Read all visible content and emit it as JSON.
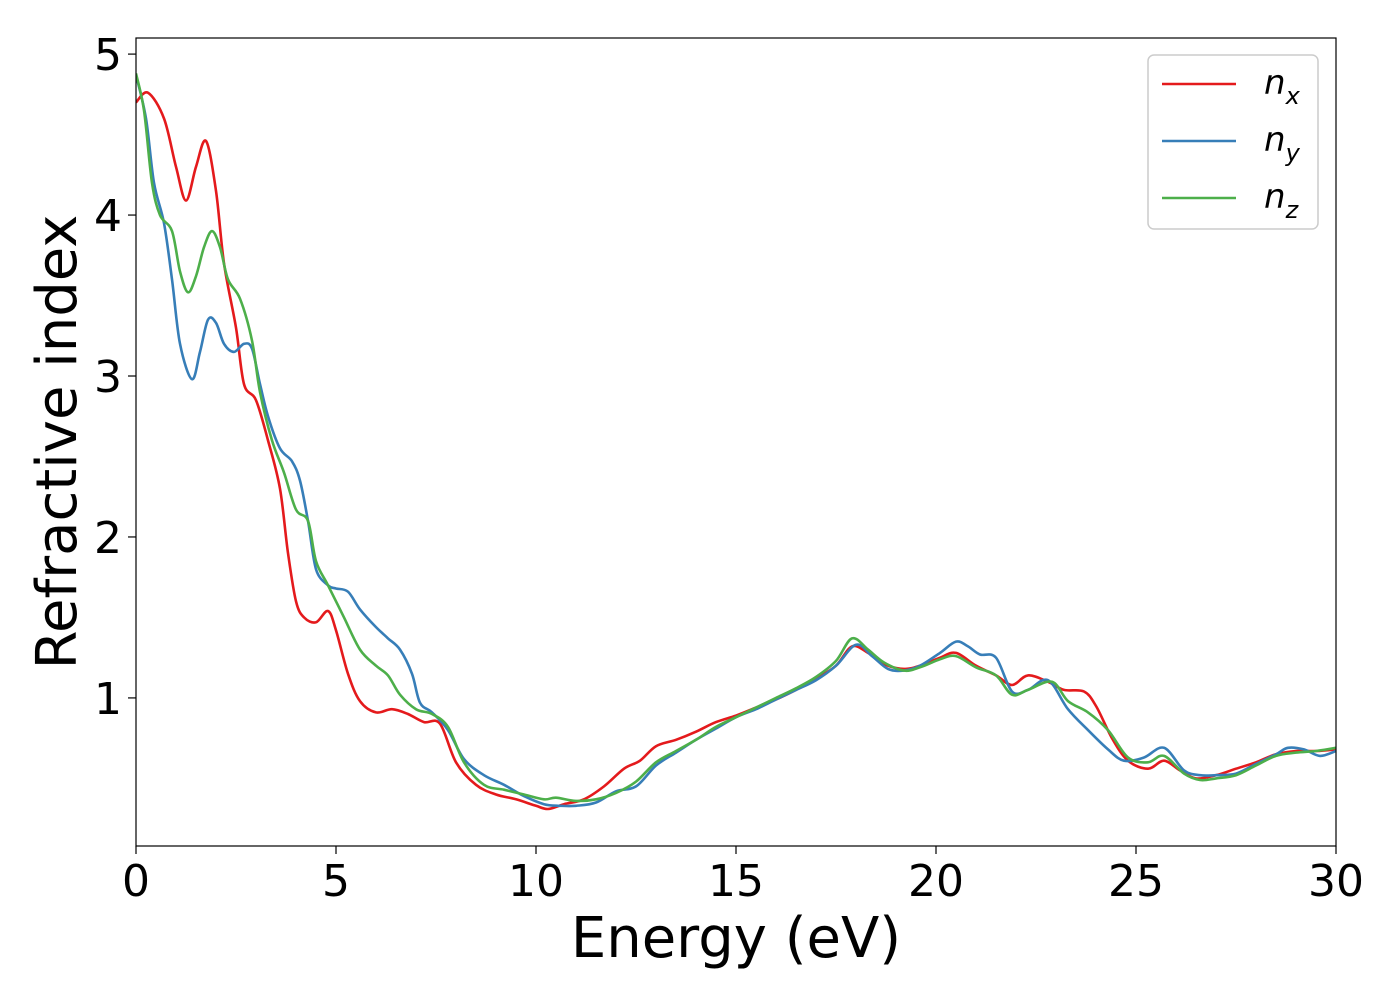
{
  "chart_data": {
    "type": "line",
    "title": "",
    "xlabel": "Energy (eV)",
    "ylabel": "Refractive index",
    "xlim": [
      0,
      30
    ],
    "ylim": [
      0.08,
      5.1
    ],
    "xticks": [
      0,
      5,
      10,
      15,
      20,
      25,
      30
    ],
    "yticks": [
      1,
      2,
      3,
      4,
      5
    ],
    "grid": false,
    "legend": {
      "position": "top-right",
      "entries": [
        {
          "base": "n",
          "sub": "x",
          "color": "#e41a1c"
        },
        {
          "base": "n",
          "sub": "y",
          "color": "#377eb8"
        },
        {
          "base": "n",
          "sub": "z",
          "color": "#4daf4a"
        }
      ]
    },
    "series": [
      {
        "key": "nx",
        "color": "#e41a1c",
        "points": [
          [
            0,
            4.7
          ],
          [
            0.3,
            4.76
          ],
          [
            0.7,
            4.6
          ],
          [
            1.0,
            4.3
          ],
          [
            1.25,
            4.09
          ],
          [
            1.5,
            4.3
          ],
          [
            1.75,
            4.46
          ],
          [
            2.0,
            4.15
          ],
          [
            2.2,
            3.7
          ],
          [
            2.5,
            3.3
          ],
          [
            2.7,
            2.95
          ],
          [
            3.0,
            2.85
          ],
          [
            3.3,
            2.6
          ],
          [
            3.6,
            2.3
          ],
          [
            3.8,
            1.9
          ],
          [
            4.0,
            1.6
          ],
          [
            4.2,
            1.5
          ],
          [
            4.5,
            1.47
          ],
          [
            4.8,
            1.54
          ],
          [
            5.0,
            1.42
          ],
          [
            5.3,
            1.15
          ],
          [
            5.6,
            0.98
          ],
          [
            6.0,
            0.91
          ],
          [
            6.4,
            0.93
          ],
          [
            6.8,
            0.9
          ],
          [
            7.2,
            0.85
          ],
          [
            7.6,
            0.84
          ],
          [
            8.0,
            0.6
          ],
          [
            8.5,
            0.46
          ],
          [
            9.0,
            0.4
          ],
          [
            9.5,
            0.37
          ],
          [
            10.0,
            0.33
          ],
          [
            10.3,
            0.31
          ],
          [
            10.7,
            0.34
          ],
          [
            11.2,
            0.37
          ],
          [
            11.7,
            0.45
          ],
          [
            12.2,
            0.56
          ],
          [
            12.6,
            0.61
          ],
          [
            13.0,
            0.7
          ],
          [
            13.5,
            0.74
          ],
          [
            14.0,
            0.79
          ],
          [
            14.5,
            0.85
          ],
          [
            15.0,
            0.89
          ],
          [
            15.5,
            0.94
          ],
          [
            16.0,
            0.99
          ],
          [
            16.5,
            1.05
          ],
          [
            17.0,
            1.12
          ],
          [
            17.5,
            1.2
          ],
          [
            17.9,
            1.32
          ],
          [
            18.3,
            1.28
          ],
          [
            18.7,
            1.21
          ],
          [
            19.2,
            1.18
          ],
          [
            19.6,
            1.2
          ],
          [
            20.1,
            1.25
          ],
          [
            20.5,
            1.28
          ],
          [
            21.0,
            1.2
          ],
          [
            21.5,
            1.14
          ],
          [
            21.9,
            1.08
          ],
          [
            22.3,
            1.14
          ],
          [
            22.8,
            1.1
          ],
          [
            23.2,
            1.05
          ],
          [
            23.7,
            1.04
          ],
          [
            24.0,
            0.95
          ],
          [
            24.4,
            0.75
          ],
          [
            24.8,
            0.61
          ],
          [
            25.3,
            0.56
          ],
          [
            25.7,
            0.61
          ],
          [
            26.1,
            0.55
          ],
          [
            26.5,
            0.5
          ],
          [
            27.0,
            0.52
          ],
          [
            27.5,
            0.56
          ],
          [
            28.0,
            0.6
          ],
          [
            28.5,
            0.65
          ],
          [
            29.0,
            0.67
          ],
          [
            29.5,
            0.67
          ],
          [
            30.0,
            0.68
          ]
        ]
      },
      {
        "key": "ny",
        "color": "#377eb8",
        "points": [
          [
            0,
            4.87
          ],
          [
            0.25,
            4.6
          ],
          [
            0.45,
            4.2
          ],
          [
            0.7,
            3.95
          ],
          [
            0.9,
            3.6
          ],
          [
            1.1,
            3.2
          ],
          [
            1.4,
            2.98
          ],
          [
            1.6,
            3.15
          ],
          [
            1.8,
            3.35
          ],
          [
            2.0,
            3.33
          ],
          [
            2.2,
            3.2
          ],
          [
            2.45,
            3.15
          ],
          [
            2.7,
            3.2
          ],
          [
            2.9,
            3.17
          ],
          [
            3.1,
            2.95
          ],
          [
            3.3,
            2.75
          ],
          [
            3.6,
            2.55
          ],
          [
            3.9,
            2.47
          ],
          [
            4.1,
            2.35
          ],
          [
            4.3,
            2.1
          ],
          [
            4.5,
            1.8
          ],
          [
            4.8,
            1.7
          ],
          [
            5.0,
            1.68
          ],
          [
            5.3,
            1.66
          ],
          [
            5.6,
            1.55
          ],
          [
            6.0,
            1.44
          ],
          [
            6.3,
            1.37
          ],
          [
            6.6,
            1.3
          ],
          [
            6.9,
            1.15
          ],
          [
            7.1,
            0.97
          ],
          [
            7.4,
            0.91
          ],
          [
            7.8,
            0.8
          ],
          [
            8.2,
            0.62
          ],
          [
            8.7,
            0.52
          ],
          [
            9.2,
            0.46
          ],
          [
            9.7,
            0.39
          ],
          [
            10.2,
            0.34
          ],
          [
            10.6,
            0.33
          ],
          [
            11.0,
            0.33
          ],
          [
            11.5,
            0.35
          ],
          [
            12.0,
            0.42
          ],
          [
            12.5,
            0.45
          ],
          [
            13.0,
            0.58
          ],
          [
            13.5,
            0.66
          ],
          [
            14.0,
            0.74
          ],
          [
            14.5,
            0.81
          ],
          [
            15.0,
            0.88
          ],
          [
            15.5,
            0.93
          ],
          [
            16.0,
            0.99
          ],
          [
            16.5,
            1.05
          ],
          [
            17.0,
            1.11
          ],
          [
            17.5,
            1.2
          ],
          [
            18.0,
            1.33
          ],
          [
            18.4,
            1.26
          ],
          [
            18.8,
            1.18
          ],
          [
            19.2,
            1.17
          ],
          [
            19.6,
            1.2
          ],
          [
            20.1,
            1.28
          ],
          [
            20.5,
            1.35
          ],
          [
            20.8,
            1.32
          ],
          [
            21.1,
            1.27
          ],
          [
            21.5,
            1.25
          ],
          [
            21.9,
            1.04
          ],
          [
            22.3,
            1.05
          ],
          [
            22.8,
            1.11
          ],
          [
            23.3,
            0.93
          ],
          [
            23.8,
            0.8
          ],
          [
            24.3,
            0.68
          ],
          [
            24.7,
            0.61
          ],
          [
            25.2,
            0.63
          ],
          [
            25.7,
            0.69
          ],
          [
            26.2,
            0.55
          ],
          [
            26.6,
            0.52
          ],
          [
            27.0,
            0.52
          ],
          [
            27.5,
            0.53
          ],
          [
            28.0,
            0.59
          ],
          [
            28.5,
            0.65
          ],
          [
            28.8,
            0.69
          ],
          [
            29.2,
            0.68
          ],
          [
            29.6,
            0.64
          ],
          [
            30.0,
            0.67
          ]
        ]
      },
      {
        "key": "nz",
        "color": "#4daf4a",
        "points": [
          [
            0,
            4.88
          ],
          [
            0.2,
            4.65
          ],
          [
            0.4,
            4.2
          ],
          [
            0.6,
            4.0
          ],
          [
            0.9,
            3.9
          ],
          [
            1.1,
            3.65
          ],
          [
            1.3,
            3.52
          ],
          [
            1.5,
            3.62
          ],
          [
            1.7,
            3.8
          ],
          [
            1.9,
            3.9
          ],
          [
            2.1,
            3.8
          ],
          [
            2.3,
            3.6
          ],
          [
            2.6,
            3.48
          ],
          [
            2.9,
            3.22
          ],
          [
            3.1,
            2.9
          ],
          [
            3.4,
            2.6
          ],
          [
            3.7,
            2.4
          ],
          [
            4.0,
            2.17
          ],
          [
            4.3,
            2.1
          ],
          [
            4.5,
            1.85
          ],
          [
            4.8,
            1.7
          ],
          [
            5.2,
            1.5
          ],
          [
            5.6,
            1.3
          ],
          [
            6.0,
            1.2
          ],
          [
            6.3,
            1.14
          ],
          [
            6.6,
            1.02
          ],
          [
            7.0,
            0.93
          ],
          [
            7.4,
            0.9
          ],
          [
            7.8,
            0.82
          ],
          [
            8.2,
            0.6
          ],
          [
            8.7,
            0.46
          ],
          [
            9.2,
            0.43
          ],
          [
            9.7,
            0.4
          ],
          [
            10.2,
            0.37
          ],
          [
            10.5,
            0.38
          ],
          [
            11.0,
            0.36
          ],
          [
            11.5,
            0.37
          ],
          [
            12.0,
            0.41
          ],
          [
            12.5,
            0.48
          ],
          [
            13.0,
            0.6
          ],
          [
            13.5,
            0.67
          ],
          [
            14.0,
            0.74
          ],
          [
            14.5,
            0.82
          ],
          [
            15.0,
            0.88
          ],
          [
            15.5,
            0.94
          ],
          [
            16.0,
            1.0
          ],
          [
            16.5,
            1.06
          ],
          [
            17.0,
            1.13
          ],
          [
            17.5,
            1.23
          ],
          [
            17.9,
            1.37
          ],
          [
            18.3,
            1.3
          ],
          [
            18.7,
            1.22
          ],
          [
            19.2,
            1.17
          ],
          [
            19.6,
            1.19
          ],
          [
            20.1,
            1.24
          ],
          [
            20.5,
            1.26
          ],
          [
            21.0,
            1.19
          ],
          [
            21.5,
            1.14
          ],
          [
            21.9,
            1.02
          ],
          [
            22.3,
            1.05
          ],
          [
            22.9,
            1.1
          ],
          [
            23.3,
            0.98
          ],
          [
            23.8,
            0.91
          ],
          [
            24.3,
            0.8
          ],
          [
            24.8,
            0.63
          ],
          [
            25.3,
            0.6
          ],
          [
            25.7,
            0.64
          ],
          [
            26.2,
            0.53
          ],
          [
            26.6,
            0.49
          ],
          [
            27.0,
            0.5
          ],
          [
            27.5,
            0.52
          ],
          [
            28.0,
            0.58
          ],
          [
            28.5,
            0.64
          ],
          [
            29.0,
            0.66
          ],
          [
            29.5,
            0.67
          ],
          [
            30.0,
            0.69
          ]
        ]
      }
    ]
  }
}
